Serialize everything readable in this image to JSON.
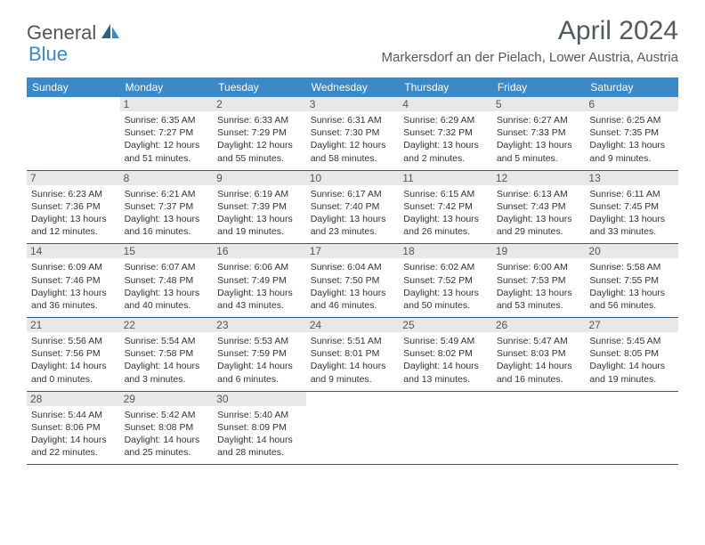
{
  "logo": {
    "text1": "General",
    "text2": "Blue"
  },
  "title": "April 2024",
  "location": "Markersdorf an der Pielach, Lower Austria, Austria",
  "colors": {
    "header_bg": "#3b89c7",
    "header_text": "#ffffff",
    "daynum_bg": "#e8e8e8",
    "daynum_text": "#555555",
    "body_text": "#333333",
    "title_text": "#525a61",
    "divider": "#3b5a73"
  },
  "weekdays": [
    "Sunday",
    "Monday",
    "Tuesday",
    "Wednesday",
    "Thursday",
    "Friday",
    "Saturday"
  ],
  "weeks": [
    [
      {
        "n": "",
        "l1": "",
        "l2": "",
        "l3": "",
        "l4": ""
      },
      {
        "n": "1",
        "l1": "Sunrise: 6:35 AM",
        "l2": "Sunset: 7:27 PM",
        "l3": "Daylight: 12 hours",
        "l4": "and 51 minutes."
      },
      {
        "n": "2",
        "l1": "Sunrise: 6:33 AM",
        "l2": "Sunset: 7:29 PM",
        "l3": "Daylight: 12 hours",
        "l4": "and 55 minutes."
      },
      {
        "n": "3",
        "l1": "Sunrise: 6:31 AM",
        "l2": "Sunset: 7:30 PM",
        "l3": "Daylight: 12 hours",
        "l4": "and 58 minutes."
      },
      {
        "n": "4",
        "l1": "Sunrise: 6:29 AM",
        "l2": "Sunset: 7:32 PM",
        "l3": "Daylight: 13 hours",
        "l4": "and 2 minutes."
      },
      {
        "n": "5",
        "l1": "Sunrise: 6:27 AM",
        "l2": "Sunset: 7:33 PM",
        "l3": "Daylight: 13 hours",
        "l4": "and 5 minutes."
      },
      {
        "n": "6",
        "l1": "Sunrise: 6:25 AM",
        "l2": "Sunset: 7:35 PM",
        "l3": "Daylight: 13 hours",
        "l4": "and 9 minutes."
      }
    ],
    [
      {
        "n": "7",
        "l1": "Sunrise: 6:23 AM",
        "l2": "Sunset: 7:36 PM",
        "l3": "Daylight: 13 hours",
        "l4": "and 12 minutes."
      },
      {
        "n": "8",
        "l1": "Sunrise: 6:21 AM",
        "l2": "Sunset: 7:37 PM",
        "l3": "Daylight: 13 hours",
        "l4": "and 16 minutes."
      },
      {
        "n": "9",
        "l1": "Sunrise: 6:19 AM",
        "l2": "Sunset: 7:39 PM",
        "l3": "Daylight: 13 hours",
        "l4": "and 19 minutes."
      },
      {
        "n": "10",
        "l1": "Sunrise: 6:17 AM",
        "l2": "Sunset: 7:40 PM",
        "l3": "Daylight: 13 hours",
        "l4": "and 23 minutes."
      },
      {
        "n": "11",
        "l1": "Sunrise: 6:15 AM",
        "l2": "Sunset: 7:42 PM",
        "l3": "Daylight: 13 hours",
        "l4": "and 26 minutes."
      },
      {
        "n": "12",
        "l1": "Sunrise: 6:13 AM",
        "l2": "Sunset: 7:43 PM",
        "l3": "Daylight: 13 hours",
        "l4": "and 29 minutes."
      },
      {
        "n": "13",
        "l1": "Sunrise: 6:11 AM",
        "l2": "Sunset: 7:45 PM",
        "l3": "Daylight: 13 hours",
        "l4": "and 33 minutes."
      }
    ],
    [
      {
        "n": "14",
        "l1": "Sunrise: 6:09 AM",
        "l2": "Sunset: 7:46 PM",
        "l3": "Daylight: 13 hours",
        "l4": "and 36 minutes."
      },
      {
        "n": "15",
        "l1": "Sunrise: 6:07 AM",
        "l2": "Sunset: 7:48 PM",
        "l3": "Daylight: 13 hours",
        "l4": "and 40 minutes."
      },
      {
        "n": "16",
        "l1": "Sunrise: 6:06 AM",
        "l2": "Sunset: 7:49 PM",
        "l3": "Daylight: 13 hours",
        "l4": "and 43 minutes."
      },
      {
        "n": "17",
        "l1": "Sunrise: 6:04 AM",
        "l2": "Sunset: 7:50 PM",
        "l3": "Daylight: 13 hours",
        "l4": "and 46 minutes."
      },
      {
        "n": "18",
        "l1": "Sunrise: 6:02 AM",
        "l2": "Sunset: 7:52 PM",
        "l3": "Daylight: 13 hours",
        "l4": "and 50 minutes."
      },
      {
        "n": "19",
        "l1": "Sunrise: 6:00 AM",
        "l2": "Sunset: 7:53 PM",
        "l3": "Daylight: 13 hours",
        "l4": "and 53 minutes."
      },
      {
        "n": "20",
        "l1": "Sunrise: 5:58 AM",
        "l2": "Sunset: 7:55 PM",
        "l3": "Daylight: 13 hours",
        "l4": "and 56 minutes."
      }
    ],
    [
      {
        "n": "21",
        "l1": "Sunrise: 5:56 AM",
        "l2": "Sunset: 7:56 PM",
        "l3": "Daylight: 14 hours",
        "l4": "and 0 minutes."
      },
      {
        "n": "22",
        "l1": "Sunrise: 5:54 AM",
        "l2": "Sunset: 7:58 PM",
        "l3": "Daylight: 14 hours",
        "l4": "and 3 minutes."
      },
      {
        "n": "23",
        "l1": "Sunrise: 5:53 AM",
        "l2": "Sunset: 7:59 PM",
        "l3": "Daylight: 14 hours",
        "l4": "and 6 minutes."
      },
      {
        "n": "24",
        "l1": "Sunrise: 5:51 AM",
        "l2": "Sunset: 8:01 PM",
        "l3": "Daylight: 14 hours",
        "l4": "and 9 minutes."
      },
      {
        "n": "25",
        "l1": "Sunrise: 5:49 AM",
        "l2": "Sunset: 8:02 PM",
        "l3": "Daylight: 14 hours",
        "l4": "and 13 minutes."
      },
      {
        "n": "26",
        "l1": "Sunrise: 5:47 AM",
        "l2": "Sunset: 8:03 PM",
        "l3": "Daylight: 14 hours",
        "l4": "and 16 minutes."
      },
      {
        "n": "27",
        "l1": "Sunrise: 5:45 AM",
        "l2": "Sunset: 8:05 PM",
        "l3": "Daylight: 14 hours",
        "l4": "and 19 minutes."
      }
    ],
    [
      {
        "n": "28",
        "l1": "Sunrise: 5:44 AM",
        "l2": "Sunset: 8:06 PM",
        "l3": "Daylight: 14 hours",
        "l4": "and 22 minutes."
      },
      {
        "n": "29",
        "l1": "Sunrise: 5:42 AM",
        "l2": "Sunset: 8:08 PM",
        "l3": "Daylight: 14 hours",
        "l4": "and 25 minutes."
      },
      {
        "n": "30",
        "l1": "Sunrise: 5:40 AM",
        "l2": "Sunset: 8:09 PM",
        "l3": "Daylight: 14 hours",
        "l4": "and 28 minutes."
      },
      {
        "n": "",
        "l1": "",
        "l2": "",
        "l3": "",
        "l4": ""
      },
      {
        "n": "",
        "l1": "",
        "l2": "",
        "l3": "",
        "l4": ""
      },
      {
        "n": "",
        "l1": "",
        "l2": "",
        "l3": "",
        "l4": ""
      },
      {
        "n": "",
        "l1": "",
        "l2": "",
        "l3": "",
        "l4": ""
      }
    ]
  ]
}
